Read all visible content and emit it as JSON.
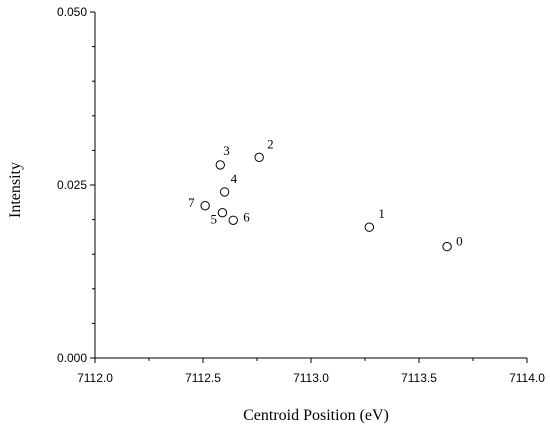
{
  "chart_data": {
    "type": "scatter",
    "title": "",
    "xlabel": "Centroid Position (eV)",
    "ylabel": "Intensity",
    "xlim": [
      7112.0,
      7114.0
    ],
    "ylim": [
      0.0,
      0.05
    ],
    "x_ticks": [
      7112.0,
      7112.5,
      7113.0,
      7113.5,
      7114.0
    ],
    "x_tick_labels": [
      "7112.0",
      "7112.5",
      "7113.0",
      "7113.5",
      "7114.0"
    ],
    "y_ticks": [
      0.0,
      0.025,
      0.05
    ],
    "y_tick_labels": [
      "0.000",
      "0.025",
      "0.050"
    ],
    "grid": false,
    "marker_style": "open-circle",
    "points": [
      {
        "label": "0",
        "x": 7113.63,
        "y": 0.0161
      },
      {
        "label": "1",
        "x": 7113.27,
        "y": 0.0189
      },
      {
        "label": "2",
        "x": 7112.76,
        "y": 0.029
      },
      {
        "label": "3",
        "x": 7112.58,
        "y": 0.0279
      },
      {
        "label": "4",
        "x": 7112.6,
        "y": 0.024
      },
      {
        "label": "5",
        "x": 7112.59,
        "y": 0.021
      },
      {
        "label": "6",
        "x": 7112.64,
        "y": 0.0199
      },
      {
        "label": "7",
        "x": 7112.51,
        "y": 0.022
      }
    ]
  }
}
